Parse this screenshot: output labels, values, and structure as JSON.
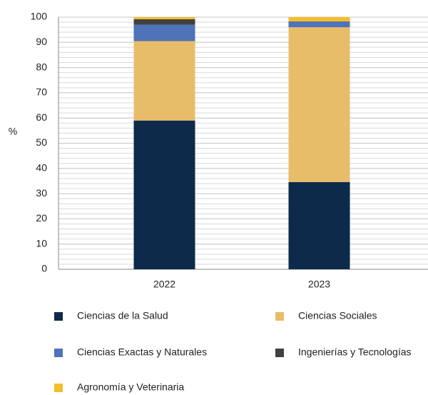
{
  "chart_data": {
    "type": "stacked_bar",
    "ylabel": "%",
    "categories": [
      "2022",
      "2023"
    ],
    "series": [
      {
        "name": "Ciencias de la Salud",
        "color": "#0d2a4a",
        "values": [
          59,
          34.6
        ]
      },
      {
        "name": "Ciencias Sociales",
        "color": "#e8bd6a",
        "values": [
          31.5,
          61.4
        ]
      },
      {
        "name": "Ciencias Exactas y Naturales",
        "color": "#4f72b8",
        "values": [
          6.5,
          2.3
        ]
      },
      {
        "name": "Ingenierías y Tecnologías",
        "color": "#404040",
        "values": [
          2.2,
          0
        ]
      },
      {
        "name": "Agronomía y Veterinaria",
        "color": "#f5bd2b",
        "values": [
          0.8,
          1.7
        ]
      }
    ],
    "ylim": [
      0,
      100
    ],
    "yticks": [
      0,
      10,
      20,
      30,
      40,
      50,
      60,
      70,
      80,
      90,
      100
    ],
    "grid": true,
    "grid_step": 2,
    "legend": "bottom"
  }
}
